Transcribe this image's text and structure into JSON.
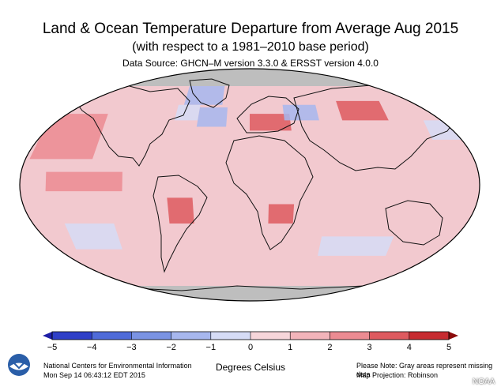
{
  "header": {
    "title": "Land & Ocean Temperature Departure from Average Aug 2015",
    "subtitle": "(with respect to a 1981–2010 base period)",
    "data_source": "Data Source: GHCN–M version 3.3.0 & ERSST version 4.0.0"
  },
  "map": {
    "projection": "Robinson",
    "missing_color": "#bebebe",
    "ocean_background": "#f2c9cf",
    "anomaly_regions": [
      {
        "name": "NE Pacific",
        "lon": [
          -175,
          -125
        ],
        "lat": [
          20,
          55
        ],
        "value": 2.0
      },
      {
        "name": "Greenland",
        "lon": [
          -60,
          -25
        ],
        "lat": [
          62,
          80
        ],
        "value": -1.5
      },
      {
        "name": "Labrador Sea",
        "lon": [
          -65,
          -45
        ],
        "lat": [
          50,
          62
        ],
        "value": -1.0
      },
      {
        "name": "North Atlantic",
        "lon": [
          -45,
          -20
        ],
        "lat": [
          45,
          60
        ],
        "value": -1.5
      },
      {
        "name": "Central Europe",
        "lon": [
          0,
          35
        ],
        "lat": [
          42,
          55
        ],
        "value": 3.0
      },
      {
        "name": "Western Russia",
        "lon": [
          30,
          60
        ],
        "lat": [
          50,
          62
        ],
        "value": -1.2
      },
      {
        "name": "Central Siberia",
        "lon": [
          80,
          120
        ],
        "lat": [
          50,
          65
        ],
        "value": 3.0
      },
      {
        "name": "South America interior",
        "lon": [
          -65,
          -45
        ],
        "lat": [
          -30,
          -10
        ],
        "value": 3.5
      },
      {
        "name": "Southern Africa",
        "lon": [
          15,
          35
        ],
        "lat": [
          -30,
          -15
        ],
        "value": 3.0
      },
      {
        "name": "Equatorial Pacific",
        "lon": [
          -160,
          -100
        ],
        "lat": [
          -5,
          10
        ],
        "value": 2.0
      },
      {
        "name": "South Pacific",
        "lon": [
          -150,
          -110
        ],
        "lat": [
          -50,
          -30
        ],
        "value": -1.0
      },
      {
        "name": "Southern Ocean",
        "lon": [
          60,
          120
        ],
        "lat": [
          -55,
          -40
        ],
        "value": -0.8
      },
      {
        "name": "North Pacific west",
        "lon": [
          150,
          180
        ],
        "lat": [
          35,
          50
        ],
        "value": -1.0
      }
    ]
  },
  "colorbar": {
    "units_label": "Degrees Celsius",
    "tick_labels": [
      "−5",
      "−4",
      "−3",
      "−2",
      "−1",
      "0",
      "1",
      "2",
      "3",
      "4",
      "5"
    ],
    "colors": [
      "#1e1ea6",
      "#2f3fc8",
      "#4f6bd9",
      "#7a93e3",
      "#a7b7ee",
      "#d6dcf6",
      "#f7d6da",
      "#f3b4ba",
      "#ec8b92",
      "#de5a5f",
      "#c72b30",
      "#8b0a0a"
    ]
  },
  "footer": {
    "org": "National Centers for Environmental Information",
    "timestamp": "Mon Sep 14 06:43:12 EDT 2015",
    "note": "Please Note: Gray areas represent missing data",
    "projection_note": "Map Projection: Robinson",
    "logo_text": "NOAA"
  }
}
